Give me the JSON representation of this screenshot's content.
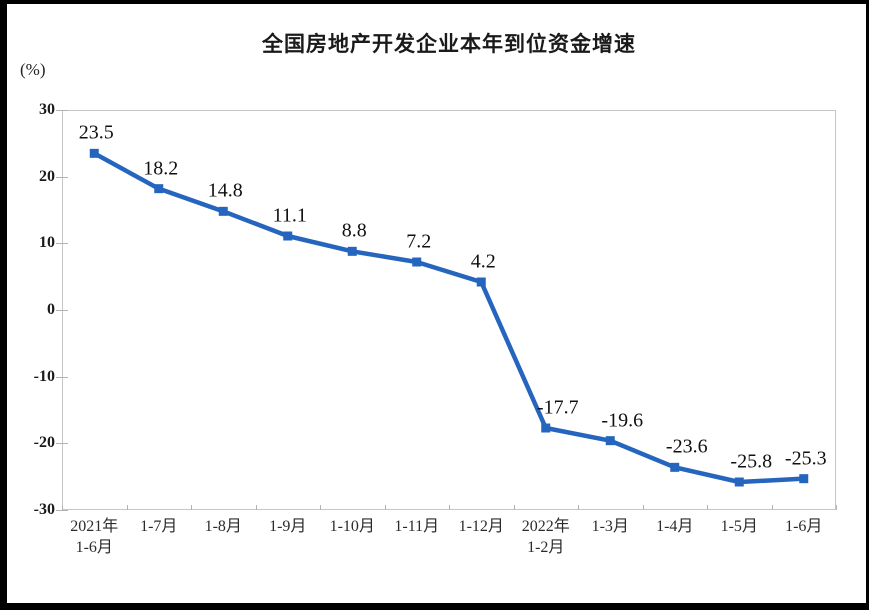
{
  "chart_data": {
    "type": "line",
    "title": "全国房地产开发企业本年到位资金增速",
    "ylabel": "(%)",
    "xlabel": "",
    "categories": [
      "2021年\n1-6月",
      "1-7月",
      "1-8月",
      "1-9月",
      "1-10月",
      "1-11月",
      "1-12月",
      "2022年\n1-2月",
      "1-3月",
      "1-4月",
      "1-5月",
      "1-6月"
    ],
    "values": [
      23.5,
      18.2,
      14.8,
      11.1,
      8.8,
      7.2,
      4.2,
      -17.7,
      -19.6,
      -23.6,
      -25.8,
      -25.3
    ],
    "data_labels": [
      "23.5",
      "18.2",
      "14.8",
      "11.1",
      "8.8",
      "7.2",
      "4.2",
      "-17.7",
      "-19.6",
      "-23.6",
      "-25.8",
      "-25.3"
    ],
    "ylim": [
      -30,
      30
    ],
    "yticks": [
      30,
      20,
      10,
      0,
      -10,
      -20,
      -30
    ],
    "grid": false,
    "legend": "none",
    "marker": "square",
    "line_color": "#2565be",
    "marker_color": "#2565be",
    "plot_border_color": "#c6c6c6",
    "tick_color": "#b3b3b3",
    "text_color": "#1a1a1a"
  }
}
